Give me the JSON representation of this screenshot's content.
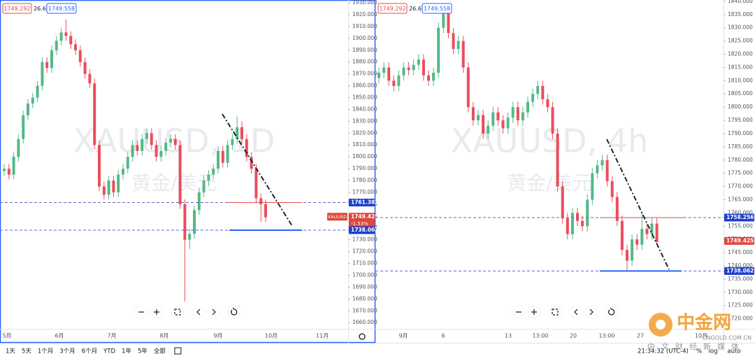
{
  "chart_data": [
    {
      "type": "candlestick",
      "title": "XAUUSD, 1D",
      "subtitle": "黄金/美元",
      "header": [
        "1749.292",
        "26.6",
        "1749.558"
      ],
      "up_color": "#53b987",
      "down_color": "#eb4d5c",
      "ylim": [
        1654.8,
        1932.4
      ],
      "yticks": [
        {
          "value": 1660,
          "label": "1660.000"
        },
        {
          "value": 1670,
          "label": "1670.000"
        },
        {
          "value": 1680,
          "label": "1680.000"
        },
        {
          "value": 1690,
          "label": "1690.000"
        },
        {
          "value": 1700,
          "label": "1700.000"
        },
        {
          "value": 1710,
          "label": "1710.000"
        },
        {
          "value": 1720,
          "label": "1720.000"
        },
        {
          "value": 1730,
          "label": "1730.000"
        },
        {
          "value": 1740,
          "label": "1740.000"
        },
        {
          "value": 1750,
          "label": "1750.000"
        },
        {
          "value": 1760,
          "label": "1760.000"
        },
        {
          "value": 1770,
          "label": "1770.000"
        },
        {
          "value": 1780,
          "label": "1780.000"
        },
        {
          "value": 1790,
          "label": "1790.000"
        },
        {
          "value": 1800,
          "label": "1800.000"
        },
        {
          "value": 1810,
          "label": "1810.000"
        },
        {
          "value": 1820,
          "label": "1820.000"
        },
        {
          "value": 1830,
          "label": "1830.000"
        },
        {
          "value": 1840,
          "label": "1840.000"
        },
        {
          "value": 1850,
          "label": "1850.000"
        },
        {
          "value": 1860,
          "label": "1860.000"
        },
        {
          "value": 1870,
          "label": "1870.000"
        },
        {
          "value": 1880,
          "label": "1880.000"
        },
        {
          "value": 1890,
          "label": "1890.000"
        },
        {
          "value": 1900,
          "label": "1900.000"
        },
        {
          "value": 1910,
          "label": "1910.000"
        },
        {
          "value": 1920,
          "label": "1920.000"
        },
        {
          "value": 1930,
          "label": "1930.000"
        }
      ],
      "x_labels": [
        "5月",
        "6月",
        "7月",
        "8月",
        "9月",
        "10月",
        "11月"
      ],
      "levels": [
        {
          "value": 1761.382,
          "color": "#1c3fcf",
          "line": "#7b5bb6"
        },
        {
          "value": 1749.425,
          "color": "#e0463c",
          "tag": "XAUUSD",
          "change": "-1.53%"
        },
        {
          "value": 1738.062,
          "color": "#1c3fcf",
          "line": "#4a6ee0"
        }
      ],
      "candles": [
        [
          1788,
          1794,
          1784,
          1790
        ],
        [
          1790,
          1794,
          1781,
          1785
        ],
        [
          1785,
          1804,
          1781,
          1800
        ],
        [
          1800,
          1819,
          1796,
          1815
        ],
        [
          1815,
          1839,
          1811,
          1835
        ],
        [
          1835,
          1849,
          1831,
          1845
        ],
        [
          1845,
          1854,
          1841,
          1850
        ],
        [
          1850,
          1864,
          1846,
          1860
        ],
        [
          1860,
          1884,
          1856,
          1880
        ],
        [
          1880,
          1884,
          1871,
          1875
        ],
        [
          1875,
          1894,
          1871,
          1890
        ],
        [
          1890,
          1902,
          1886,
          1898
        ],
        [
          1898,
          1909,
          1894,
          1905
        ],
        [
          1905,
          1916,
          1898,
          1902
        ],
        [
          1902,
          1906,
          1891,
          1895
        ],
        [
          1895,
          1899,
          1886,
          1890
        ],
        [
          1890,
          1894,
          1876,
          1880
        ],
        [
          1880,
          1884,
          1866,
          1870
        ],
        [
          1870,
          1874,
          1858,
          1862
        ],
        [
          1862,
          1866,
          1806,
          1810
        ],
        [
          1810,
          1814,
          1771,
          1775
        ],
        [
          1775,
          1779,
          1764,
          1768
        ],
        [
          1768,
          1784,
          1764,
          1780
        ],
        [
          1780,
          1784,
          1766,
          1770
        ],
        [
          1770,
          1789,
          1766,
          1785
        ],
        [
          1785,
          1794,
          1781,
          1790
        ],
        [
          1790,
          1804,
          1786,
          1800
        ],
        [
          1800,
          1814,
          1796,
          1810
        ],
        [
          1810,
          1814,
          1801,
          1805
        ],
        [
          1805,
          1819,
          1801,
          1815
        ],
        [
          1815,
          1824,
          1811,
          1820
        ],
        [
          1820,
          1824,
          1806,
          1810
        ],
        [
          1810,
          1814,
          1796,
          1800
        ],
        [
          1800,
          1809,
          1796,
          1805
        ],
        [
          1805,
          1816,
          1801,
          1812
        ],
        [
          1812,
          1819,
          1808,
          1815
        ],
        [
          1815,
          1819,
          1806,
          1810
        ],
        [
          1810,
          1814,
          1756,
          1760
        ],
        [
          1760,
          1764,
          1678,
          1730
        ],
        [
          1730,
          1739,
          1722,
          1735
        ],
        [
          1735,
          1759,
          1731,
          1755
        ],
        [
          1755,
          1774,
          1751,
          1770
        ],
        [
          1770,
          1784,
          1766,
          1780
        ],
        [
          1780,
          1789,
          1776,
          1785
        ],
        [
          1785,
          1794,
          1781,
          1790
        ],
        [
          1790,
          1809,
          1786,
          1805
        ],
        [
          1805,
          1809,
          1791,
          1795
        ],
        [
          1795,
          1814,
          1791,
          1810
        ],
        [
          1810,
          1819,
          1806,
          1815
        ],
        [
          1815,
          1834,
          1811,
          1825
        ],
        [
          1825,
          1830,
          1811,
          1815
        ],
        [
          1815,
          1819,
          1796,
          1800
        ],
        [
          1800,
          1804,
          1786,
          1790
        ],
        [
          1790,
          1794,
          1761,
          1765
        ],
        [
          1765,
          1769,
          1745,
          1760
        ],
        [
          1760,
          1764,
          1745,
          1749
        ]
      ]
    },
    {
      "type": "candlestick",
      "title": "XAUUSD, 4h",
      "subtitle": "黄金/美元",
      "header": [
        "1749.292",
        "26.6",
        "1749.558"
      ],
      "up_color": "#53b987",
      "down_color": "#eb4d5c",
      "ylim": [
        1716.2,
        1840.5
      ],
      "yticks": [
        {
          "value": 1720,
          "label": "1720.000"
        },
        {
          "value": 1725,
          "label": "1725.000"
        },
        {
          "value": 1730,
          "label": "1730.000"
        },
        {
          "value": 1735,
          "label": "1735.000"
        },
        {
          "value": 1740,
          "label": "1740.000"
        },
        {
          "value": 1745,
          "label": "1745.000"
        },
        {
          "value": 1750,
          "label": "1750.000"
        },
        {
          "value": 1755,
          "label": "1755.000"
        },
        {
          "value": 1760,
          "label": "1760.000"
        },
        {
          "value": 1765,
          "label": "1765.000"
        },
        {
          "value": 1770,
          "label": "1770.000"
        },
        {
          "value": 1775,
          "label": "1775.000"
        },
        {
          "value": 1780,
          "label": "1780.000"
        },
        {
          "value": 1785,
          "label": "1785.000"
        },
        {
          "value": 1790,
          "label": "1790.000"
        },
        {
          "value": 1795,
          "label": "1795.000"
        },
        {
          "value": 1800,
          "label": "1800.000"
        },
        {
          "value": 1805,
          "label": "1805.000"
        },
        {
          "value": 1810,
          "label": "1810.000"
        },
        {
          "value": 1815,
          "label": "1815.000"
        },
        {
          "value": 1820,
          "label": "1820.000"
        },
        {
          "value": 1825,
          "label": "1825.000"
        },
        {
          "value": 1830,
          "label": "1830.000"
        },
        {
          "value": 1835,
          "label": "1835.000"
        },
        {
          "value": 1840,
          "label": "1840.000"
        }
      ],
      "x_labels": [
        "9月",
        "6",
        "13",
        "13:00",
        "20",
        "13:00",
        "27",
        "10月"
      ],
      "levels": [
        {
          "value": 1758.256,
          "color": "#1c3fcf",
          "line": "#7b5bb6"
        },
        {
          "value": 1749.425,
          "color": "#e0463c"
        },
        {
          "value": 1738.062,
          "color": "#1c3fcf",
          "line": "#4a6ee0"
        }
      ],
      "candles": [
        [
          1811,
          1815,
          1809,
          1813
        ],
        [
          1813,
          1817,
          1811,
          1815
        ],
        [
          1815,
          1817,
          1808,
          1810
        ],
        [
          1810,
          1812,
          1806,
          1808
        ],
        [
          1808,
          1814,
          1806,
          1812
        ],
        [
          1812,
          1817,
          1810,
          1815
        ],
        [
          1815,
          1817,
          1812,
          1814
        ],
        [
          1814,
          1818,
          1812,
          1816
        ],
        [
          1816,
          1820,
          1814,
          1818
        ],
        [
          1818,
          1820,
          1810,
          1812
        ],
        [
          1812,
          1814,
          1808,
          1810
        ],
        [
          1810,
          1815,
          1808,
          1813
        ],
        [
          1813,
          1832,
          1811,
          1830
        ],
        [
          1830,
          1838,
          1828,
          1836
        ],
        [
          1836,
          1838,
          1826,
          1828
        ],
        [
          1828,
          1830,
          1820,
          1822
        ],
        [
          1822,
          1827,
          1820,
          1825
        ],
        [
          1825,
          1827,
          1813,
          1815
        ],
        [
          1815,
          1817,
          1798,
          1800
        ],
        [
          1800,
          1802,
          1793,
          1795
        ],
        [
          1795,
          1799,
          1793,
          1797
        ],
        [
          1797,
          1799,
          1788,
          1790
        ],
        [
          1790,
          1795,
          1788,
          1793
        ],
        [
          1793,
          1800,
          1791,
          1798
        ],
        [
          1798,
          1800,
          1793,
          1795
        ],
        [
          1795,
          1797,
          1790,
          1792
        ],
        [
          1792,
          1798,
          1790,
          1796
        ],
        [
          1796,
          1802,
          1794,
          1800
        ],
        [
          1800,
          1802,
          1793,
          1795
        ],
        [
          1795,
          1800,
          1793,
          1798
        ],
        [
          1798,
          1804,
          1796,
          1802
        ],
        [
          1802,
          1807,
          1800,
          1805
        ],
        [
          1805,
          1810,
          1803,
          1808
        ],
        [
          1808,
          1810,
          1801,
          1803
        ],
        [
          1803,
          1805,
          1798,
          1800
        ],
        [
          1800,
          1802,
          1788,
          1790
        ],
        [
          1790,
          1792,
          1768,
          1770
        ],
        [
          1770,
          1772,
          1756,
          1758
        ],
        [
          1758,
          1760,
          1750,
          1752
        ],
        [
          1752,
          1762,
          1750,
          1760
        ],
        [
          1760,
          1762,
          1755,
          1757
        ],
        [
          1757,
          1759,
          1753,
          1755
        ],
        [
          1755,
          1767,
          1753,
          1765
        ],
        [
          1765,
          1777,
          1763,
          1775
        ],
        [
          1775,
          1780,
          1773,
          1778
        ],
        [
          1778,
          1782,
          1776,
          1780
        ],
        [
          1780,
          1782,
          1770,
          1772
        ],
        [
          1772,
          1774,
          1764,
          1766
        ],
        [
          1766,
          1768,
          1755,
          1757
        ],
        [
          1757,
          1759,
          1744,
          1746
        ],
        [
          1746,
          1748,
          1738,
          1742
        ],
        [
          1742,
          1752,
          1740,
          1750
        ],
        [
          1750,
          1752,
          1746,
          1748
        ],
        [
          1748,
          1760,
          1746,
          1754
        ],
        [
          1754,
          1756,
          1750,
          1752
        ],
        [
          1752,
          1758,
          1750,
          1756
        ],
        [
          1756,
          1758,
          1748,
          1749
        ]
      ]
    }
  ],
  "toolbar": {
    "ranges": [
      "1天",
      "5天",
      "1个月",
      "3个月",
      "6个月",
      "YTD",
      "1年",
      "5年",
      "全部"
    ],
    "time": "21:34:32 (UTC-4)",
    "options": [
      "%",
      "log",
      "auto"
    ]
  },
  "logo": {
    "name": "中金网",
    "site": "CNGOLD.COM.CN",
    "slogan": "中文财经新媒体"
  }
}
